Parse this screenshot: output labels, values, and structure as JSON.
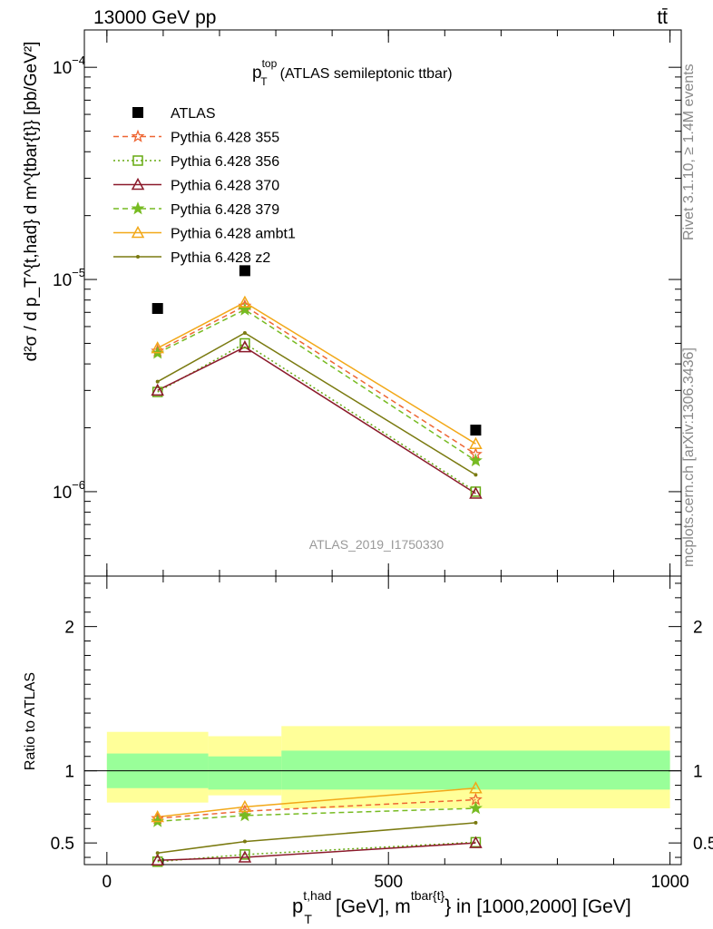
{
  "header": {
    "energy": "13000 GeV pp",
    "process": "tt̄"
  },
  "side": {
    "rivet": "Rivet 3.1.10, ≥ 1.4M events",
    "mcplots": "mcplots.cern.ch [arXiv:1306.3436]"
  },
  "watermark": "ATLAS_2019_I1750330",
  "chart_data": [
    {
      "type": "line",
      "panel": "main",
      "title_main": "p",
      "title_sup": "top",
      "title_sub": "T",
      "title_rest": "(ATLAS semileptonic ttbar)",
      "ylabel": "d²σ / d p_T^{t,had} d m^{tbar{t}} [pb/GeV²]",
      "yscale": "log",
      "ylim": [
        4e-07,
        0.00015
      ],
      "xlim": [
        -40,
        1020
      ],
      "ytick_labels": [
        {
          "value": 0.0001,
          "mant": "10",
          "exp": "−4"
        },
        {
          "value": 1e-05,
          "mant": "10",
          "exp": "−5"
        },
        {
          "value": 1e-06,
          "mant": "10",
          "exp": "−6"
        }
      ],
      "x": [
        90,
        245,
        655
      ],
      "series": [
        {
          "name": "ATLAS",
          "values": [
            7.3e-06,
            1.1e-05,
            1.95e-06
          ],
          "color": "#000000",
          "marker": "square",
          "line": "none"
        },
        {
          "name": "Pythia 6.428 355",
          "values": [
            4.6e-06,
            7.5e-06,
            1.5e-06
          ],
          "color": "#ee6633",
          "marker": "star-open",
          "line": "dashed"
        },
        {
          "name": "Pythia 6.428 356",
          "values": [
            2.95e-06,
            5e-06,
            1e-06
          ],
          "color": "#66aa11",
          "marker": "square-open",
          "line": "dotted"
        },
        {
          "name": "Pythia 6.428 370",
          "values": [
            3e-06,
            4.8e-06,
            9.8e-07
          ],
          "color": "#8b1a2b",
          "marker": "triangle-open",
          "line": "solid"
        },
        {
          "name": "Pythia 6.428 379",
          "values": [
            4.5e-06,
            7.2e-06,
            1.4e-06
          ],
          "color": "#77bb22",
          "marker": "star",
          "line": "dashed"
        },
        {
          "name": "Pythia 6.428 ambt1",
          "values": [
            4.75e-06,
            7.8e-06,
            1.68e-06
          ],
          "color": "#f2a818",
          "marker": "triangle-open",
          "line": "solid"
        },
        {
          "name": "Pythia 6.428 z2",
          "values": [
            3.3e-06,
            5.6e-06,
            1.2e-06
          ],
          "color": "#7a7a10",
          "marker": "dot",
          "line": "solid"
        }
      ]
    },
    {
      "type": "line",
      "panel": "ratio",
      "ylabel": "Ratio to ATLAS",
      "xlabel_main": "p",
      "xlabel_sup": "t,had",
      "xlabel_sub": "T",
      "xlabel_mid": "[GeV], m",
      "xlabel_sup2": "tbar{t}",
      "xlabel_end": "} in [1000,2000] [GeV]",
      "ylim": [
        0.35,
        2.35
      ],
      "xlim": [
        -40,
        1020
      ],
      "yticks": [
        0.5,
        1,
        2
      ],
      "ytick_labels": [
        "0.5",
        "1",
        "2"
      ],
      "xticks": [
        0,
        500,
        1000
      ],
      "xtick_labels": [
        "0",
        "500",
        "1000"
      ],
      "bands": [
        {
          "x0": 0,
          "x1": 180,
          "y1_lo": 0.88,
          "y1_hi": 1.12,
          "y2_lo": 0.78,
          "y2_hi": 1.27
        },
        {
          "x0": 180,
          "x1": 310,
          "y1_lo": 0.87,
          "y1_hi": 1.1,
          "y2_lo": 0.83,
          "y2_hi": 1.24
        },
        {
          "x0": 310,
          "x1": 1000,
          "y1_lo": 0.87,
          "y1_hi": 1.14,
          "y2_lo": 0.74,
          "y2_hi": 1.31
        }
      ],
      "x": [
        90,
        245,
        655
      ],
      "series": [
        {
          "name": "Pythia 6.428 355",
          "values": [
            0.67,
            0.72,
            0.8
          ]
        },
        {
          "name": "Pythia 6.428 356",
          "values": [
            0.37,
            0.42,
            0.505
          ]
        },
        {
          "name": "Pythia 6.428 370",
          "values": [
            0.38,
            0.4,
            0.5
          ]
        },
        {
          "name": "Pythia 6.428 379",
          "values": [
            0.65,
            0.69,
            0.74
          ]
        },
        {
          "name": "Pythia 6.428 ambt1",
          "values": [
            0.68,
            0.75,
            0.88
          ]
        },
        {
          "name": "Pythia 6.428 z2",
          "values": [
            0.43,
            0.51,
            0.64
          ]
        }
      ]
    }
  ]
}
